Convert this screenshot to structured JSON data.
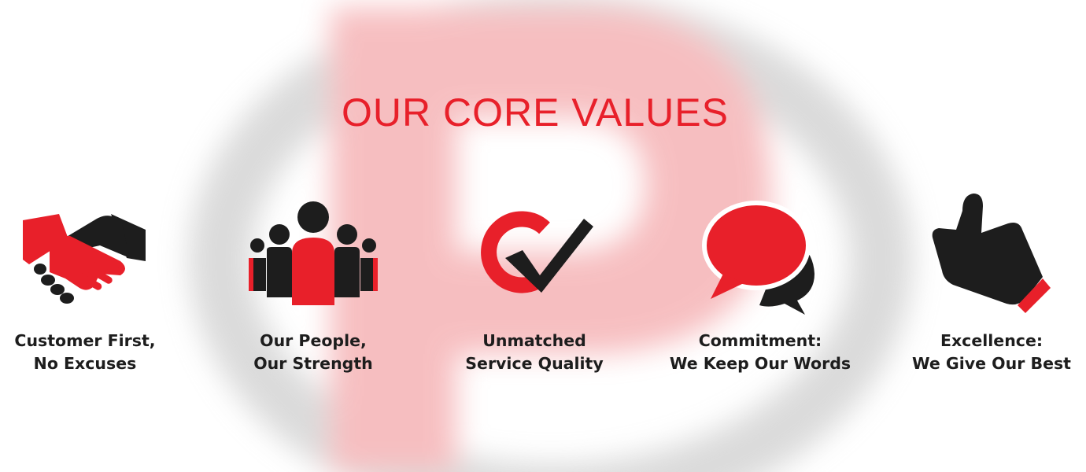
{
  "page": {
    "title": "OUR CORE VALUES"
  },
  "colors": {
    "accent": "#e8202a",
    "dark": "#1d1d1d",
    "watermark_red": "#f7c9cb",
    "watermark_gray": "#d9d9d9"
  },
  "values": [
    {
      "icon": "handshake-icon",
      "line1": "Customer First,",
      "line2": "No Excuses"
    },
    {
      "icon": "people-group-icon",
      "line1": "Our People,",
      "line2": "Our Strength"
    },
    {
      "icon": "quality-check-icon",
      "line1": "Unmatched",
      "line2": "Service Quality"
    },
    {
      "icon": "speech-bubbles-icon",
      "line1": "Commitment:",
      "line2": "We Keep Our Words"
    },
    {
      "icon": "thumbs-up-icon",
      "line1": "Excellence:",
      "line2": "We Give Our Best"
    }
  ]
}
